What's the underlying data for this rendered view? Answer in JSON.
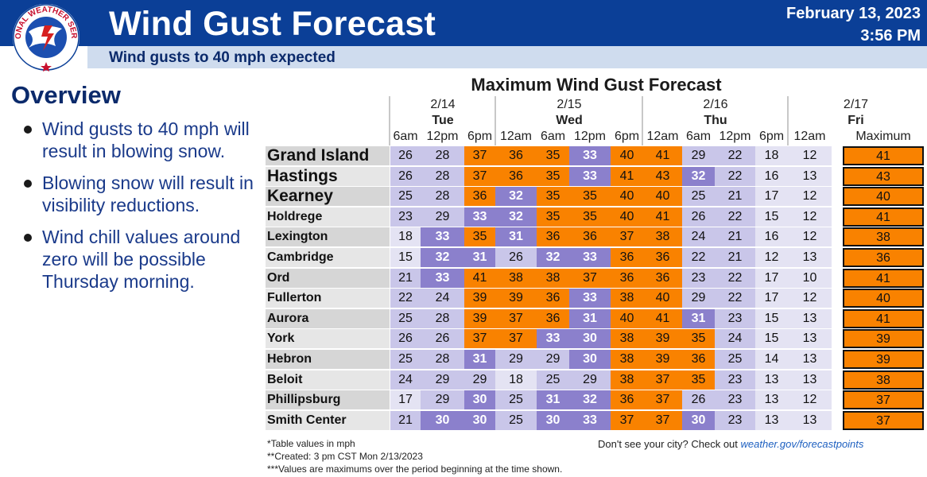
{
  "header": {
    "title": "Wind Gust Forecast",
    "subtitle": "Wind gusts to 40 mph expected",
    "date": "February 13, 2023",
    "time": "3:56 PM",
    "logo_text": "NATIONAL WEATHER SERVICE",
    "colors": {
      "banner": "#0b3f97",
      "subbar": "#cfdcee"
    }
  },
  "overview": {
    "title": "Overview",
    "bullets": [
      "Wind gusts to 40 mph will result in blowing snow.",
      "Blowing snow will result in visibility reductions.",
      "Wind chill values around zero will be possible Thursday morning."
    ]
  },
  "table": {
    "title": "Maximum Wind Gust Forecast",
    "colors": {
      "ge35": "#f98200",
      "30to34": "#8b80cc",
      "20to29": "#c9c6e9",
      "lt20": "#e4e3f3"
    },
    "day_groups": [
      {
        "date": "2/14",
        "day": "Tue"
      },
      {
        "date": "2/15",
        "day": "Wed"
      },
      {
        "date": "2/16",
        "day": "Thu"
      },
      {
        "date": "2/17",
        "day": "Fri"
      }
    ],
    "times": [
      "6am",
      "12pm",
      "6pm",
      "12am",
      "6am",
      "12pm",
      "6pm",
      "12am",
      "6am",
      "12pm",
      "6pm",
      "12am"
    ],
    "max_label": "Maximum",
    "rows": [
      {
        "city": "Grand Island",
        "values": [
          26,
          28,
          37,
          36,
          35,
          33,
          40,
          41,
          29,
          22,
          18,
          12
        ],
        "max": 41
      },
      {
        "city": "Hastings",
        "values": [
          26,
          28,
          37,
          36,
          35,
          33,
          41,
          43,
          32,
          22,
          16,
          13
        ],
        "max": 43
      },
      {
        "city": "Kearney",
        "values": [
          25,
          28,
          36,
          32,
          35,
          35,
          40,
          40,
          25,
          21,
          17,
          12
        ],
        "max": 40
      },
      {
        "city": "Holdrege",
        "values": [
          23,
          29,
          33,
          32,
          35,
          35,
          40,
          41,
          26,
          22,
          15,
          12
        ],
        "max": 41
      },
      {
        "city": "Lexington",
        "values": [
          18,
          33,
          35,
          31,
          36,
          36,
          37,
          38,
          24,
          21,
          16,
          12
        ],
        "max": 38
      },
      {
        "city": "Cambridge",
        "values": [
          15,
          32,
          31,
          26,
          32,
          33,
          36,
          36,
          22,
          21,
          12,
          13
        ],
        "max": 36
      },
      {
        "city": "Ord",
        "values": [
          21,
          33,
          41,
          38,
          38,
          37,
          36,
          36,
          23,
          22,
          17,
          10
        ],
        "max": 41
      },
      {
        "city": "Fullerton",
        "values": [
          22,
          24,
          39,
          39,
          36,
          33,
          38,
          40,
          29,
          22,
          17,
          12
        ],
        "max": 40
      },
      {
        "city": "Aurora",
        "values": [
          25,
          28,
          39,
          37,
          36,
          31,
          40,
          41,
          31,
          23,
          15,
          13
        ],
        "max": 41
      },
      {
        "city": "York",
        "values": [
          26,
          26,
          37,
          37,
          33,
          30,
          38,
          39,
          35,
          24,
          15,
          13
        ],
        "max": 39
      },
      {
        "city": "Hebron",
        "values": [
          25,
          28,
          31,
          29,
          29,
          30,
          38,
          39,
          36,
          25,
          14,
          13
        ],
        "max": 39
      },
      {
        "city": "Beloit",
        "values": [
          24,
          29,
          29,
          18,
          25,
          29,
          38,
          37,
          35,
          23,
          13,
          13
        ],
        "max": 38
      },
      {
        "city": "Phillipsburg",
        "values": [
          17,
          29,
          30,
          25,
          31,
          32,
          36,
          37,
          26,
          23,
          13,
          12
        ],
        "max": 37
      },
      {
        "city": "Smith Center",
        "values": [
          21,
          30,
          30,
          25,
          30,
          33,
          37,
          37,
          30,
          23,
          13,
          13
        ],
        "max": 37
      }
    ]
  },
  "notes": [
    "*Table values in mph",
    "**Created: 3 pm CST Mon 2/13/2023",
    "***Values are maximums over the period beginning at the time shown."
  ],
  "cta": {
    "text": "Don't see your city? Check out ",
    "link": "weather.gov/forecastpoints"
  }
}
